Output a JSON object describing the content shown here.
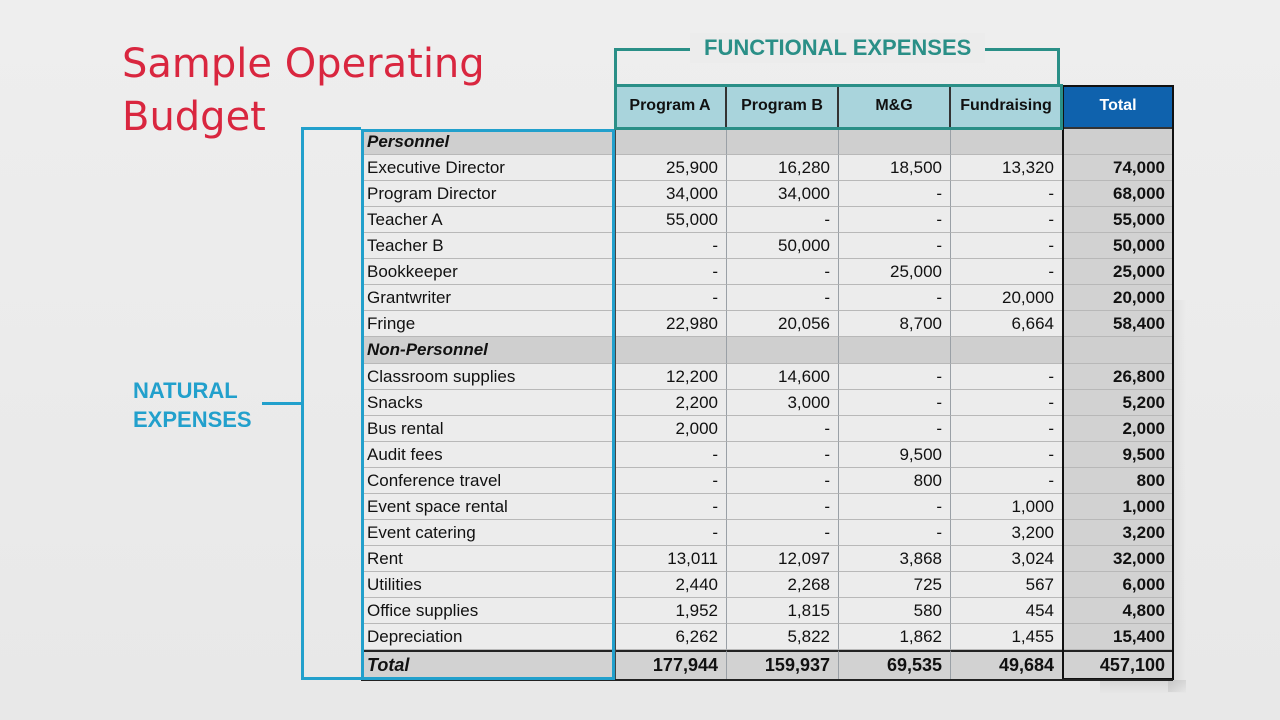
{
  "title": {
    "line1": "Sample Operating",
    "line2": "Budget"
  },
  "functional_label": "FUNCTIONAL EXPENSES",
  "natural_label": {
    "line1": "NATURAL",
    "line2": "EXPENSES"
  },
  "headers": [
    "",
    "Program A",
    "Program B",
    "M&G",
    "Fundraising",
    "Total"
  ],
  "rows": [
    {
      "type": "section",
      "label": "Personnel"
    },
    {
      "type": "data",
      "label": "Executive Director",
      "values": [
        "25,900",
        "16,280",
        "18,500",
        "13,320"
      ],
      "total": "74,000"
    },
    {
      "type": "data",
      "label": "Program Director",
      "values": [
        "34,000",
        "34,000",
        "-",
        "-"
      ],
      "total": "68,000"
    },
    {
      "type": "data",
      "label": "Teacher A",
      "values": [
        "55,000",
        "-",
        "-",
        "-"
      ],
      "total": "55,000"
    },
    {
      "type": "data",
      "label": "Teacher B",
      "values": [
        "-",
        "50,000",
        "-",
        "-"
      ],
      "total": "50,000"
    },
    {
      "type": "data",
      "label": "Bookkeeper",
      "values": [
        "-",
        "-",
        "25,000",
        "-"
      ],
      "total": "25,000"
    },
    {
      "type": "data",
      "label": "Grantwriter",
      "values": [
        "-",
        "-",
        "-",
        "20,000"
      ],
      "total": "20,000"
    },
    {
      "type": "data",
      "label": "Fringe",
      "values": [
        "22,980",
        "20,056",
        "8,700",
        "6,664"
      ],
      "total": "58,400"
    },
    {
      "type": "section",
      "label": "Non-Personnel"
    },
    {
      "type": "data",
      "label": "Classroom supplies",
      "values": [
        "12,200",
        "14,600",
        "-",
        "-"
      ],
      "total": "26,800"
    },
    {
      "type": "data",
      "label": "Snacks",
      "values": [
        "2,200",
        "3,000",
        "-",
        "-"
      ],
      "total": "5,200"
    },
    {
      "type": "data",
      "label": "Bus rental",
      "values": [
        "2,000",
        "-",
        "-",
        "-"
      ],
      "total": "2,000"
    },
    {
      "type": "data",
      "label": "Audit fees",
      "values": [
        "-",
        "-",
        "9,500",
        "-"
      ],
      "total": "9,500"
    },
    {
      "type": "data",
      "label": "Conference travel",
      "values": [
        "-",
        "-",
        "800",
        "-"
      ],
      "total": "800"
    },
    {
      "type": "data",
      "label": "Event space rental",
      "values": [
        "-",
        "-",
        "-",
        "1,000"
      ],
      "total": "1,000"
    },
    {
      "type": "data",
      "label": "Event catering",
      "values": [
        "-",
        "-",
        "-",
        "3,200"
      ],
      "total": "3,200"
    },
    {
      "type": "data",
      "label": "Rent",
      "values": [
        "13,011",
        "12,097",
        "3,868",
        "3,024"
      ],
      "total": "32,000"
    },
    {
      "type": "data",
      "label": "Utilities",
      "values": [
        "2,440",
        "2,268",
        "725",
        "567"
      ],
      "total": "6,000"
    },
    {
      "type": "data",
      "label": "Office supplies",
      "values": [
        "1,952",
        "1,815",
        "580",
        "454"
      ],
      "total": "4,800"
    },
    {
      "type": "data",
      "label": "Depreciation",
      "values": [
        "6,262",
        "5,822",
        "1,862",
        "1,455"
      ],
      "total": "15,400"
    },
    {
      "type": "total",
      "label": "Total",
      "values": [
        "177,944",
        "159,937",
        "69,535",
        "49,684"
      ],
      "total": "457,100"
    }
  ],
  "colors": {
    "title": "#d9263f",
    "functional": "#2a8f87",
    "natural": "#22a0cc",
    "header_fill": "#a9d4dc",
    "total_header": "#0f62ad"
  }
}
